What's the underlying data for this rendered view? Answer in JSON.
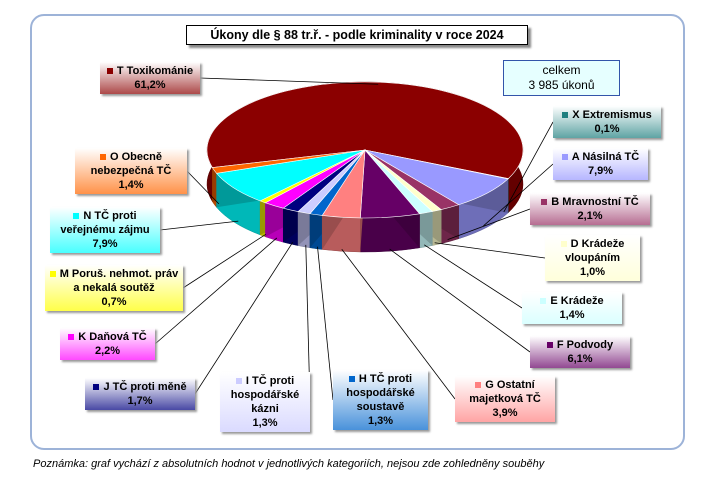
{
  "chart_data": {
    "type": "pie",
    "title": "Úkony dle § 88 tr.ř. - podle kriminality v roce 2024",
    "annotations": [
      "celkem",
      "3 985 úkonů"
    ],
    "note": "Poznámka: graf vychází z absolutních hodnot v jednotlivých kategoriích, nejsou zde zohledněny souběhy",
    "categories": [
      "T Toxikománie",
      "X Extremismus",
      "A Násilná TČ",
      "B Mravnostní TČ",
      "D Krádeže vloupáním",
      "E Krádeže",
      "F Podvody",
      "G Ostatní majetková TČ",
      "H TČ proti hospodářské soustavě",
      "I TČ proti hospodářské kázni",
      "J TČ proti měně",
      "K Daňová TČ",
      "M Poruš. nehmot. práv a nekalá soutěž",
      "N TČ proti veřejnému zájmu",
      "O Obecně nebezpečná TČ"
    ],
    "values": [
      61.2,
      0.1,
      7.9,
      2.1,
      1.0,
      1.4,
      6.1,
      3.9,
      1.3,
      1.3,
      1.7,
      2.2,
      0.7,
      7.9,
      1.4
    ],
    "value_labels": [
      "61,2%",
      "0,1%",
      "7,9%",
      "2,1%",
      "1,0%",
      "1,4%",
      "6,1%",
      "3,9%",
      "1,3%",
      "1,3%",
      "1,7%",
      "2,2%",
      "0,7%",
      "7,9%",
      "1,4%"
    ],
    "colors": [
      "#8b0000",
      "#1f7f7f",
      "#9999ff",
      "#993366",
      "#ffffcc",
      "#ccffff",
      "#660066",
      "#ff8080",
      "#0066cc",
      "#ccccff",
      "#000080",
      "#ff00ff",
      "#ffff00",
      "#00ffff",
      "#ff6600"
    ]
  }
}
